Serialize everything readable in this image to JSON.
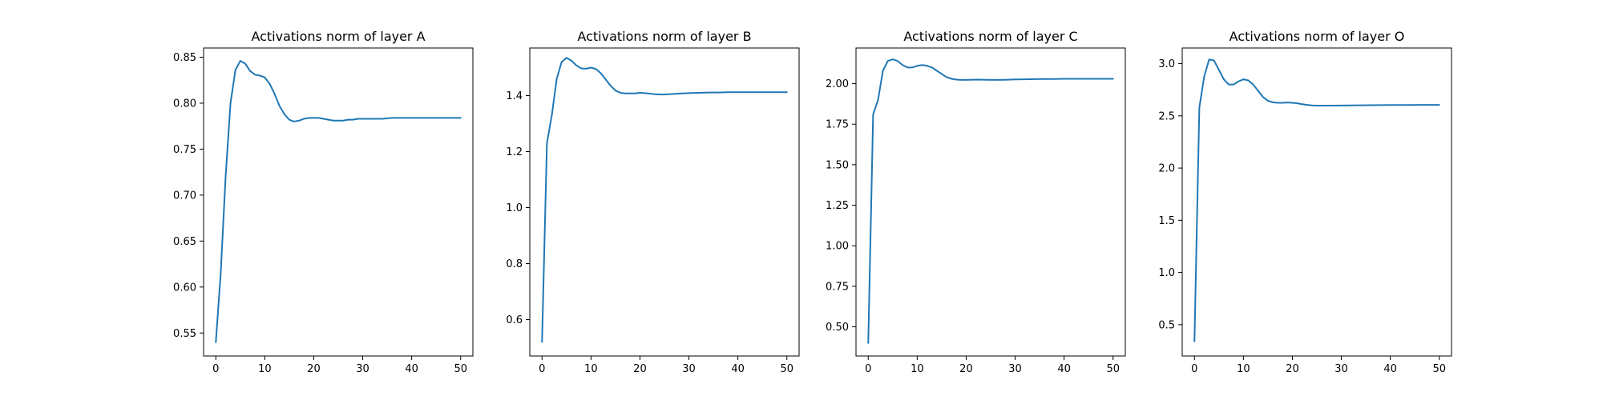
{
  "colors": {
    "series": "#1f77b4",
    "axes": "#000000",
    "background": "#ffffff"
  },
  "chart_data": [
    {
      "type": "line",
      "title": "Activations norm of layer A",
      "xlabel": "",
      "ylabel": "",
      "xlim": [
        -2.5,
        52.5
      ],
      "ylim": [
        0.525,
        0.86
      ],
      "xticks": [
        0,
        10,
        20,
        30,
        40,
        50
      ],
      "yticks": [
        0.55,
        0.6,
        0.65,
        0.7,
        0.75,
        0.8,
        0.85
      ],
      "ytick_decimals": 2,
      "grid": false,
      "series": [
        {
          "x": [
            0,
            1,
            2,
            3,
            4,
            5,
            6,
            7,
            8,
            9,
            10,
            11,
            12,
            13,
            14,
            15,
            16,
            17,
            18,
            19,
            20,
            21,
            22,
            23,
            24,
            25,
            26,
            27,
            28,
            29,
            30,
            32,
            34,
            36,
            38,
            40,
            42,
            44,
            46,
            48,
            50
          ],
          "y": [
            0.54,
            0.615,
            0.72,
            0.8,
            0.836,
            0.846,
            0.843,
            0.835,
            0.831,
            0.83,
            0.828,
            0.821,
            0.81,
            0.797,
            0.788,
            0.782,
            0.78,
            0.781,
            0.783,
            0.784,
            0.784,
            0.784,
            0.783,
            0.782,
            0.781,
            0.781,
            0.781,
            0.782,
            0.782,
            0.783,
            0.783,
            0.783,
            0.783,
            0.784,
            0.784,
            0.784,
            0.784,
            0.784,
            0.784,
            0.784,
            0.784
          ]
        }
      ]
    },
    {
      "type": "line",
      "title": "Activations norm of layer B",
      "xlabel": "",
      "ylabel": "",
      "xlim": [
        -2.5,
        52.5
      ],
      "ylim": [
        0.47,
        1.57
      ],
      "xticks": [
        0,
        10,
        20,
        30,
        40,
        50
      ],
      "yticks": [
        0.6,
        0.8,
        1.0,
        1.2,
        1.4
      ],
      "ytick_decimals": 1,
      "grid": false,
      "series": [
        {
          "x": [
            0,
            1,
            2,
            3,
            4,
            5,
            6,
            7,
            8,
            9,
            10,
            11,
            12,
            13,
            14,
            15,
            16,
            17,
            18,
            19,
            20,
            21,
            22,
            23,
            24,
            25,
            26,
            27,
            28,
            30,
            32,
            34,
            36,
            38,
            40,
            42,
            44,
            46,
            48,
            50
          ],
          "y": [
            0.52,
            1.23,
            1.33,
            1.46,
            1.52,
            1.535,
            1.525,
            1.508,
            1.497,
            1.496,
            1.5,
            1.495,
            1.48,
            1.458,
            1.435,
            1.418,
            1.41,
            1.408,
            1.408,
            1.408,
            1.41,
            1.409,
            1.407,
            1.405,
            1.404,
            1.404,
            1.405,
            1.406,
            1.407,
            1.409,
            1.41,
            1.411,
            1.411,
            1.412,
            1.412,
            1.412,
            1.412,
            1.412,
            1.412,
            1.412
          ]
        }
      ]
    },
    {
      "type": "line",
      "title": "Activations norm of layer C",
      "xlabel": "",
      "ylabel": "",
      "xlim": [
        -2.5,
        52.5
      ],
      "ylim": [
        0.32,
        2.22
      ],
      "xticks": [
        0,
        10,
        20,
        30,
        40,
        50
      ],
      "yticks": [
        0.5,
        0.75,
        1.0,
        1.25,
        1.5,
        1.75,
        2.0
      ],
      "ytick_decimals": 2,
      "grid": false,
      "series": [
        {
          "x": [
            0,
            1,
            2,
            3,
            4,
            5,
            6,
            7,
            8,
            9,
            10,
            11,
            12,
            13,
            14,
            15,
            16,
            17,
            18,
            19,
            20,
            22,
            24,
            26,
            28,
            30,
            32,
            34,
            36,
            38,
            40,
            42,
            44,
            46,
            48,
            50
          ],
          "y": [
            0.4,
            1.81,
            1.9,
            2.08,
            2.14,
            2.15,
            2.14,
            2.115,
            2.1,
            2.1,
            2.11,
            2.115,
            2.11,
            2.1,
            2.08,
            2.06,
            2.04,
            2.03,
            2.025,
            2.023,
            2.023,
            2.025,
            2.024,
            2.023,
            2.024,
            2.026,
            2.027,
            2.028,
            2.029,
            2.029,
            2.03,
            2.03,
            2.03,
            2.03,
            2.03,
            2.03
          ]
        }
      ]
    },
    {
      "type": "line",
      "title": "Activations norm of layer O",
      "xlabel": "",
      "ylabel": "",
      "xlim": [
        -2.5,
        52.5
      ],
      "ylim": [
        0.2,
        3.15
      ],
      "xticks": [
        0,
        10,
        20,
        30,
        40,
        50
      ],
      "yticks": [
        0.5,
        1.0,
        1.5,
        2.0,
        2.5,
        3.0
      ],
      "ytick_decimals": 1,
      "grid": false,
      "series": [
        {
          "x": [
            0,
            1,
            2,
            3,
            4,
            5,
            6,
            7,
            8,
            9,
            10,
            11,
            12,
            13,
            14,
            15,
            16,
            17,
            18,
            19,
            20,
            21,
            22,
            23,
            24,
            25,
            26,
            28,
            30,
            32,
            34,
            36,
            38,
            40,
            42,
            44,
            46,
            48,
            50
          ],
          "y": [
            0.34,
            2.58,
            2.88,
            3.04,
            3.03,
            2.94,
            2.85,
            2.8,
            2.8,
            2.83,
            2.85,
            2.84,
            2.8,
            2.74,
            2.68,
            2.645,
            2.63,
            2.625,
            2.625,
            2.628,
            2.625,
            2.62,
            2.612,
            2.605,
            2.6,
            2.598,
            2.598,
            2.598,
            2.599,
            2.6,
            2.601,
            2.602,
            2.603,
            2.604,
            2.604,
            2.604,
            2.605,
            2.605,
            2.605
          ]
        }
      ]
    }
  ]
}
